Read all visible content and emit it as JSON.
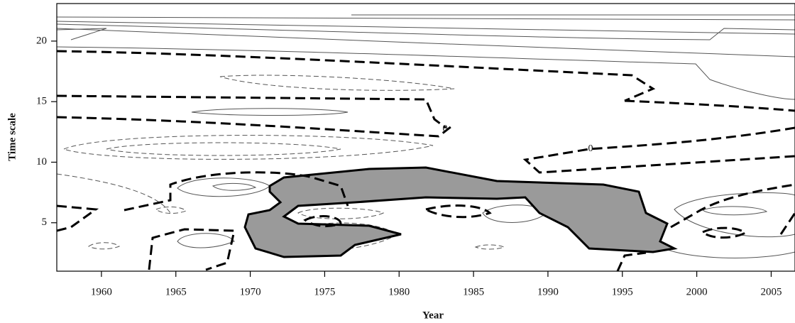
{
  "chart_data": {
    "type": "contour",
    "x_label": "Year",
    "y_label": "Time scale",
    "xlim": [
      1957,
      2006.6
    ],
    "ylim": [
      1,
      23.1
    ],
    "xticks": [
      1960,
      1965,
      1970,
      1975,
      1980,
      1985,
      1990,
      1995,
      2000,
      2005
    ],
    "yticks": [
      5,
      10,
      15,
      20
    ],
    "annotations": [
      "0",
      "0"
    ]
  }
}
